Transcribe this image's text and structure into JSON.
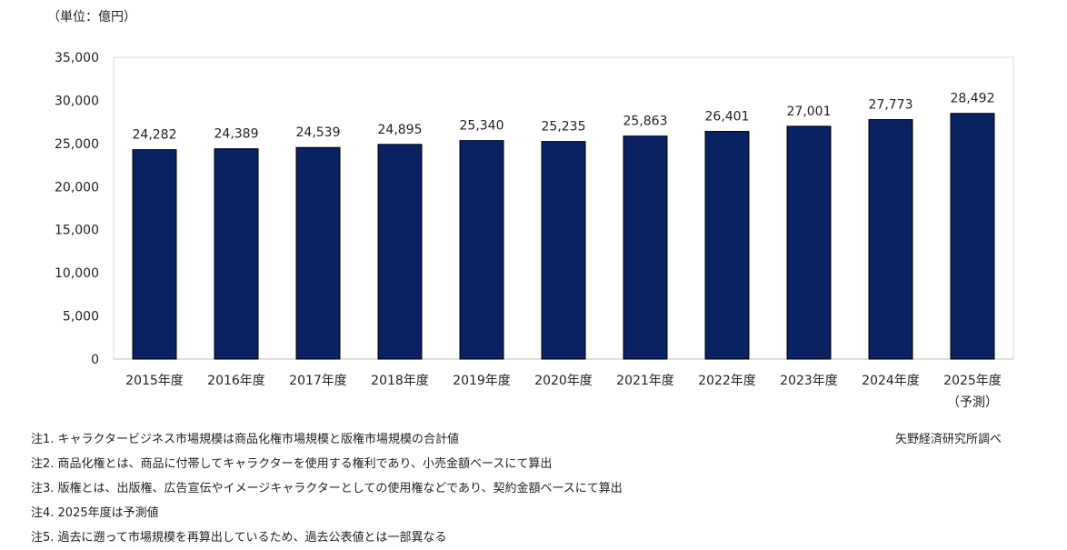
{
  "chart_data": {
    "type": "bar",
    "unit_label": "（単位：億円）",
    "categories": [
      "2015年度",
      "2016年度",
      "2017年度",
      "2018年度",
      "2019年度",
      "2020年度",
      "2021年度",
      "2022年度",
      "2023年度",
      "2024年度",
      "2025年度"
    ],
    "category_sublabels": [
      "",
      "",
      "",
      "",
      "",
      "",
      "",
      "",
      "",
      "",
      "（予測）"
    ],
    "values": [
      24282,
      24389,
      24539,
      24895,
      25340,
      25235,
      25863,
      26401,
      27001,
      27773,
      28492
    ],
    "value_labels": [
      "24,282",
      "24,389",
      "24,539",
      "24,895",
      "25,340",
      "25,235",
      "25,863",
      "26,401",
      "27,001",
      "27,773",
      "28,492"
    ],
    "ylim": [
      0,
      35000
    ],
    "yticks": [
      0,
      5000,
      10000,
      15000,
      20000,
      25000,
      30000,
      35000
    ],
    "ytick_labels": [
      "0",
      "5,000",
      "10,000",
      "15,000",
      "20,000",
      "25,000",
      "30,000",
      "35,000"
    ],
    "grid": false,
    "bar_color": "#0a2262",
    "source": "矢野経済研究所調べ",
    "notes": [
      "注1.  キャラクタービジネス市場規模は商品化権市場規模と版権市場規模の合計値",
      "注2.  商品化権とは、商品に付帯してキャラクターを使用する権利であり、小売金額ベースにて算出",
      "注3.  版権とは、出版権、広告宣伝やイメージキャラクターとしての使用権などであり、契約金額ベースにて算出",
      "注4.  2025年度は予測値",
      "注5.  過去に遡って市場規模を再算出しているため、過去公表値とは一部異なる"
    ]
  }
}
